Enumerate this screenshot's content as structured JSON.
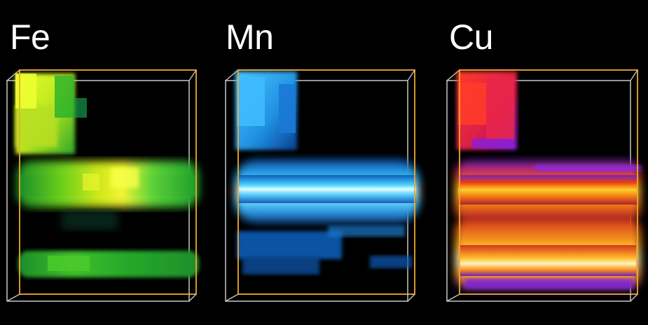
{
  "panels": [
    {
      "id": "fe",
      "label": "Fe",
      "colormap": "green-yellow"
    },
    {
      "id": "mn",
      "label": "Mn",
      "colormap": "blue-cyan"
    },
    {
      "id": "cu",
      "label": "Cu",
      "colormap": "fire"
    }
  ],
  "colors": {
    "background": "#000000",
    "front_box": "#f0a830",
    "back_box": "#c8c8c8",
    "label": "#ffffff"
  }
}
